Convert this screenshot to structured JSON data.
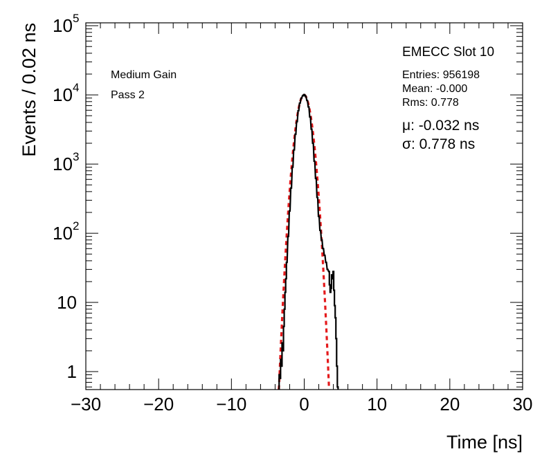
{
  "chart_data": {
    "type": "line",
    "title": "EMECC Slot 10",
    "xlabel": "Time [ns]",
    "ylabel": "Events / 0.02 ns",
    "xlim": [
      -30,
      30
    ],
    "ylim": [
      0.55,
      110000
    ],
    "yscale": "log",
    "x_ticks": [
      -30,
      -20,
      -10,
      0,
      10,
      20,
      30
    ],
    "x_tick_labels": [
      "−30",
      "−20",
      "−10",
      "0",
      "10",
      "20",
      "30"
    ],
    "y_ticks": [
      {
        "value": 1,
        "base": "1",
        "exp": ""
      },
      {
        "value": 10,
        "base": "10",
        "exp": ""
      },
      {
        "value": 100,
        "base": "10",
        "exp": "2"
      },
      {
        "value": 1000,
        "base": "10",
        "exp": "3"
      },
      {
        "value": 10000,
        "base": "10",
        "exp": "4"
      },
      {
        "value": 100000,
        "base": "10",
        "exp": "5"
      }
    ],
    "annotations": {
      "gain": "Medium Gain",
      "pass": "Pass 2"
    },
    "stats": {
      "entries": "Entries: 956198",
      "mean": "Mean: -0.000",
      "rms": "Rms: 0.778"
    },
    "fit": {
      "mu_label": "μ: -0.032 ns",
      "sigma_label": "σ: 0.778 ns",
      "mu": -0.032,
      "sigma": 0.778,
      "peak": 10000,
      "x_range": [
        -3.5,
        3.4
      ],
      "color": "#e41a1c"
    },
    "series": [
      {
        "name": "data",
        "color": "#000000",
        "x": [
          -3.5,
          -3.4,
          -3.3,
          -3.2,
          -3.1,
          -3.0,
          -2.9,
          -2.8,
          -2.7,
          -2.6,
          -2.5,
          -2.4,
          -2.2,
          -2.0,
          -1.8,
          -1.6,
          -1.4,
          -1.2,
          -1.0,
          -0.8,
          -0.6,
          -0.4,
          -0.2,
          -0.1,
          0.0,
          0.1,
          0.2,
          0.4,
          0.6,
          0.8,
          1.0,
          1.2,
          1.4,
          1.6,
          1.8,
          2.0,
          2.2,
          2.4,
          2.6,
          2.8,
          3.0,
          3.2,
          3.4,
          3.5,
          3.6,
          3.7,
          3.8,
          3.9,
          4.0,
          4.1,
          4.2,
          4.3,
          4.4,
          4.5,
          4.6,
          4.7
        ],
        "values": [
          0.56,
          0.9,
          0.8,
          1.5,
          1.2,
          2.6,
          2.0,
          4.5,
          8,
          14,
          22,
          38,
          90,
          210,
          450,
          900,
          1600,
          2700,
          4100,
          5900,
          7600,
          8900,
          9700,
          9900,
          10100,
          9800,
          9500,
          8300,
          6700,
          4800,
          3200,
          2000,
          1100,
          620,
          330,
          175,
          110,
          80,
          60,
          48,
          38,
          30,
          28,
          18,
          14,
          16,
          25,
          22,
          28,
          15,
          9,
          6,
          3,
          1.2,
          0.6,
          0.56
        ]
      }
    ]
  }
}
